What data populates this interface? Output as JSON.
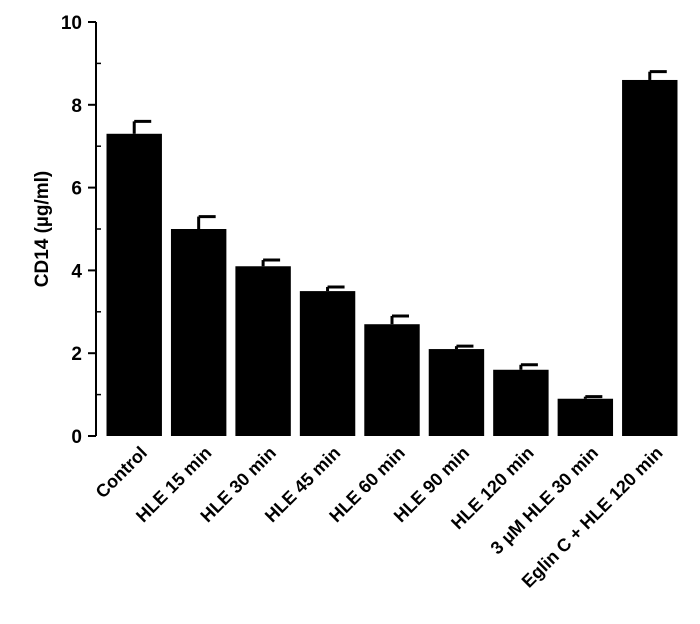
{
  "chart_data": {
    "type": "bar",
    "title": "",
    "xlabel": "",
    "ylabel": "CD14 (µg/ml)",
    "ylim": [
      0,
      10
    ],
    "yticks": [
      0,
      2,
      4,
      6,
      8,
      10
    ],
    "grid": false,
    "legend": "none",
    "bar_color": "#000000",
    "categories": [
      "Control",
      "HLE 15 min",
      "HLE 30 min",
      "HLE 45 min",
      "HLE 60 min",
      "HLE 90 min",
      "HLE 120 min",
      "3 µM HLE 30 min",
      "Eglin C + HLE 120 min"
    ],
    "values": [
      7.3,
      5.0,
      4.1,
      3.5,
      2.7,
      2.1,
      1.6,
      0.9,
      8.6
    ],
    "errors": [
      0.3,
      0.3,
      0.15,
      0.1,
      0.2,
      0.07,
      0.12,
      0.05,
      0.2
    ]
  }
}
